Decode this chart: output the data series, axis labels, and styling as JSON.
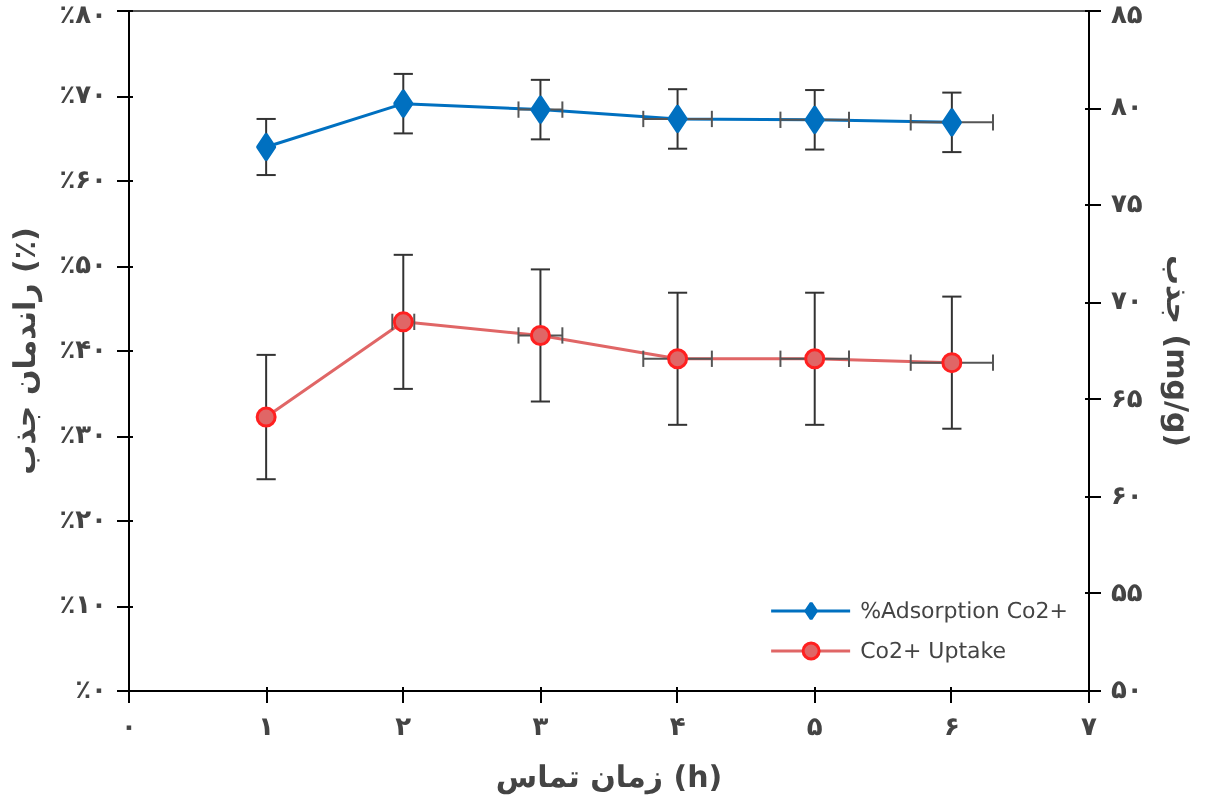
{
  "chart_data": {
    "type": "line",
    "xlabel": "زمان تماس (h)",
    "ylabel": "راندمان جذب (٪)",
    "y2label": "جذب (mg/g)",
    "x": [
      1,
      2,
      3,
      4,
      5,
      6
    ],
    "series": [
      {
        "name": "%Adsorption Co2+",
        "color": "#0070c0",
        "marker": "diamond",
        "values": [
          64.0,
          69.1,
          68.4,
          67.3,
          67.2,
          66.9
        ],
        "errors": [
          3.3,
          3.5,
          3.5,
          3.5,
          3.5,
          3.5
        ],
        "xerrors": [
          null,
          null,
          0.16,
          0.25,
          0.25,
          0.3
        ]
      },
      {
        "name": "Co2+ Uptake",
        "color": "#e06666",
        "marker": "circle",
        "axis": "y2",
        "values": [
          64.1,
          69.0,
          68.3,
          67.1,
          67.1,
          66.9
        ],
        "errors": [
          3.2,
          3.45,
          3.4,
          3.4,
          3.4,
          3.4
        ],
        "xerrors": [
          null,
          0.08,
          0.16,
          0.25,
          0.25,
          0.3
        ]
      }
    ],
    "xlim": [
      0,
      7
    ],
    "xticks": [
      {
        "value": 0,
        "label": "۰"
      },
      {
        "value": 1,
        "label": "۱"
      },
      {
        "value": 2,
        "label": "۲"
      },
      {
        "value": 3,
        "label": "۳"
      },
      {
        "value": 4,
        "label": "۴"
      },
      {
        "value": 5,
        "label": "۵"
      },
      {
        "value": 6,
        "label": "۶"
      },
      {
        "value": 7,
        "label": "۷"
      }
    ],
    "ylim": [
      0,
      80
    ],
    "yticks": [
      {
        "value": 0,
        "label": "٪۰"
      },
      {
        "value": 10,
        "label": "٪۱۰"
      },
      {
        "value": 20,
        "label": "٪۲۰"
      },
      {
        "value": 30,
        "label": "٪۳۰"
      },
      {
        "value": 40,
        "label": "٪۴۰"
      },
      {
        "value": 50,
        "label": "٪۵۰"
      },
      {
        "value": 60,
        "label": "٪۶۰"
      },
      {
        "value": 70,
        "label": "٪۷۰"
      },
      {
        "value": 80,
        "label": "٪۸۰"
      }
    ],
    "y2lim": [
      50,
      85
    ],
    "y2ticks": [
      {
        "value": 50,
        "label": "۵۰"
      },
      {
        "value": 55,
        "label": "۵۵"
      },
      {
        "value": 60,
        "label": "۶۰"
      },
      {
        "value": 65,
        "label": "۶۵"
      },
      {
        "value": 70,
        "label": "۷۰"
      },
      {
        "value": 75,
        "label": "۷۵"
      },
      {
        "value": 80,
        "label": "۸۰"
      },
      {
        "value": 85,
        "label": "۸۵"
      }
    ],
    "legend": "bottom right",
    "grid": false,
    "line_style": "solid"
  }
}
